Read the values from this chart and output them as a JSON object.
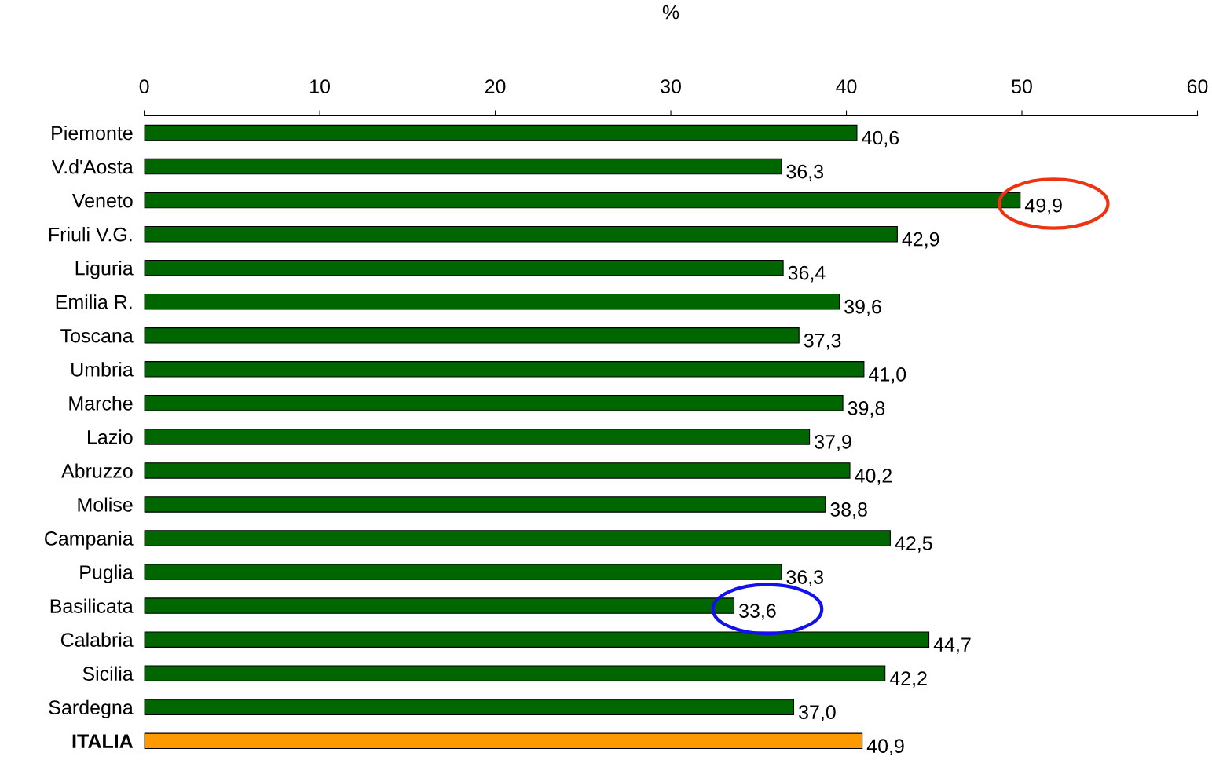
{
  "chart_data": {
    "type": "bar",
    "orientation": "horizontal",
    "xlabel": "%",
    "categories": [
      "Piemonte",
      "V.d'Aosta",
      "Veneto",
      "Friuli V.G.",
      "Liguria",
      "Emilia R.",
      "Toscana",
      "Umbria",
      "Marche",
      "Lazio",
      "Abruzzo",
      "Molise",
      "Campania",
      "Puglia",
      "Basilicata",
      "Calabria",
      "Sicilia",
      "Sardegna",
      "ITALIA"
    ],
    "values": [
      40.6,
      36.3,
      49.9,
      42.9,
      36.4,
      39.6,
      37.3,
      41.0,
      39.8,
      37.9,
      40.2,
      38.8,
      42.5,
      36.3,
      33.6,
      44.7,
      42.2,
      37.0,
      40.9
    ],
    "colors": [
      "#006600",
      "#006600",
      "#006600",
      "#006600",
      "#006600",
      "#006600",
      "#006600",
      "#006600",
      "#006600",
      "#006600",
      "#006600",
      "#006600",
      "#006600",
      "#006600",
      "#006600",
      "#006600",
      "#006600",
      "#006600",
      "#ff9900"
    ],
    "value_labels": [
      "40,6",
      "36,3",
      "49,9",
      "42,9",
      "36,4",
      "39,6",
      "37,3",
      "41,0",
      "39,8",
      "37,9",
      "40,2",
      "38,8",
      "42,5",
      "36,3",
      "33,6",
      "44,7",
      "42,2",
      "37,0",
      "40,9"
    ],
    "xlim": [
      0,
      60
    ],
    "xticks": [
      0,
      10,
      20,
      30,
      40,
      50,
      60
    ],
    "grid": false,
    "legend": false
  }
}
